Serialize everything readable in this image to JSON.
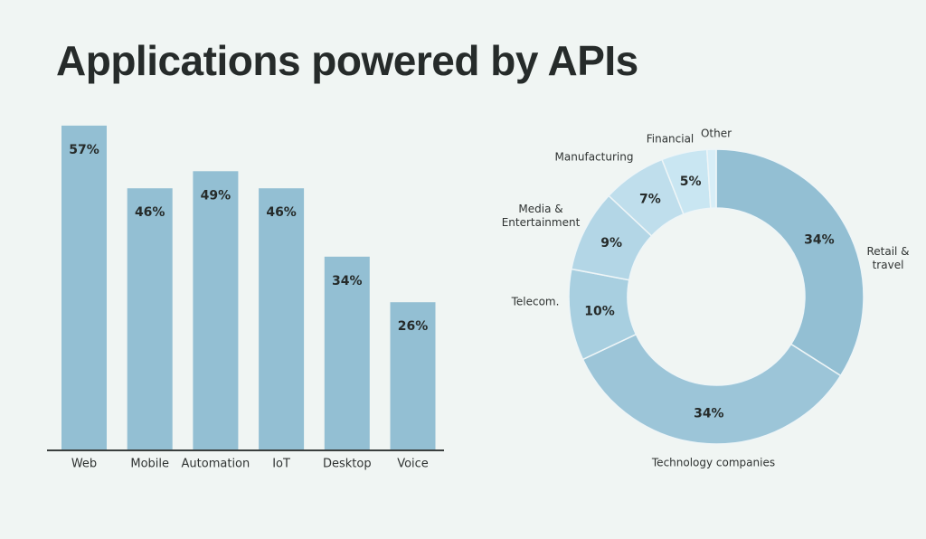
{
  "chart_data": [
    {
      "type": "bar",
      "title": "Applications powered by APIs",
      "categories": [
        "Web",
        "Mobile",
        "Automation",
        "IoT",
        "Desktop",
        "Voice"
      ],
      "values": [
        57,
        46,
        49,
        46,
        34,
        26
      ],
      "value_labels": [
        "57%",
        "46%",
        "49%",
        "46%",
        "34%",
        "26%"
      ],
      "color": "#93bfd3"
    },
    {
      "type": "donut",
      "categories": [
        "Retail & travel",
        "Technology companies",
        "Telecom.",
        "Media & Entertainment",
        "Manufacturing",
        "Financial",
        "Other"
      ],
      "values": [
        34,
        34,
        10,
        9,
        7,
        5,
        1
      ],
      "value_labels": [
        "34%",
        "34%",
        "10%",
        "9%",
        "7%",
        "5%",
        null
      ],
      "colors": [
        "#93bfd3",
        "#9cc5d8",
        "#a8cfe0",
        "#b3d6e6",
        "#bfdeec",
        "#c9e6f2",
        "#d8eef7"
      ]
    }
  ]
}
